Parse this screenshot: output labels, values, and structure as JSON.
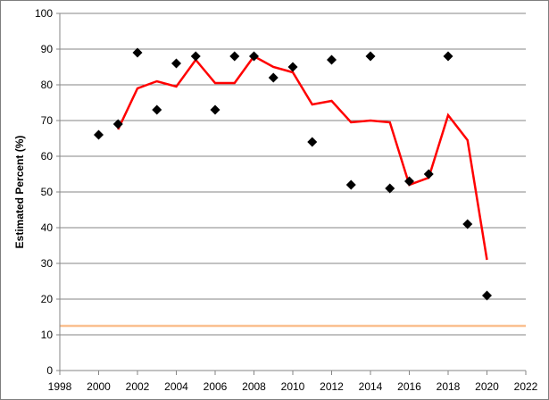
{
  "chart_data": {
    "type": "scatter",
    "title": "",
    "xlabel": "",
    "ylabel": "Estimated Percent (%)",
    "xlim": [
      1998,
      2022
    ],
    "ylim": [
      0,
      100
    ],
    "x_ticks": [
      1998,
      2000,
      2002,
      2004,
      2006,
      2008,
      2010,
      2012,
      2014,
      2016,
      2018,
      2020,
      2022
    ],
    "y_ticks": [
      0,
      10,
      20,
      30,
      40,
      50,
      60,
      70,
      80,
      90,
      100
    ],
    "grid": "horizontal",
    "legend": "none",
    "series": [
      {
        "kind": "points",
        "marker": "diamond",
        "color": "#000000",
        "x": [
          2000,
          2001,
          2002,
          2003,
          2004,
          2005,
          2006,
          2007,
          2008,
          2009,
          2010,
          2011,
          2012,
          2013,
          2014,
          2015,
          2016,
          2017,
          2018,
          2019,
          2020
        ],
        "y": [
          66,
          69,
          89,
          73,
          86,
          88,
          73,
          88,
          88,
          82,
          85,
          64,
          87,
          52,
          88,
          51,
          53,
          55,
          88,
          41,
          21
        ]
      },
      {
        "kind": "line",
        "color": "#ff0000",
        "x": [
          2001,
          2002,
          2003,
          2004,
          2005,
          2006,
          2007,
          2008,
          2009,
          2010,
          2011,
          2012,
          2013,
          2014,
          2015,
          2016,
          2017,
          2018,
          2019,
          2020
        ],
        "y": [
          67.5,
          79,
          81,
          79.5,
          87,
          80.5,
          80.5,
          88,
          85,
          83.5,
          74.5,
          75.5,
          69.5,
          70,
          69.5,
          52,
          54,
          71.5,
          64.5,
          31
        ]
      },
      {
        "kind": "reference-line",
        "color": "#fac090",
        "y": 12.5
      }
    ]
  }
}
